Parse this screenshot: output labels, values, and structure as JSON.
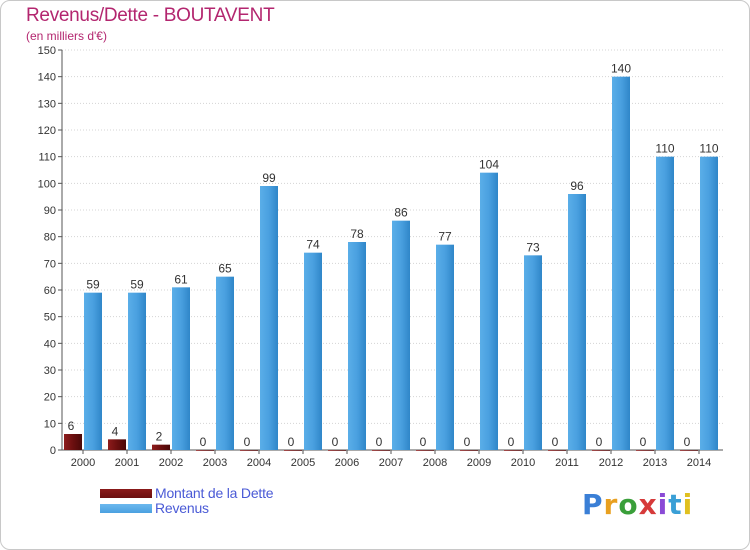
{
  "title": "Revenus/Dette - BOUTAVENT",
  "subtitle": "(en milliers d'€)",
  "colors": {
    "dette": "#6b0f0f",
    "revenus": "#4aa0e0",
    "title": "#b3266f",
    "legend_text": "#4a5ad6"
  },
  "legend": {
    "dette_label": "Montant de la Dette",
    "revenus_label": "Revenus"
  },
  "logo": {
    "text": "Proxiti"
  },
  "chart_data": {
    "type": "bar",
    "title": "Revenus/Dette - BOUTAVENT",
    "ylabel": "(en milliers d'€)",
    "xlabel": "",
    "categories": [
      "2000",
      "2001",
      "2002",
      "2003",
      "2004",
      "2005",
      "2006",
      "2007",
      "2008",
      "2009",
      "2010",
      "2011",
      "2012",
      "2013",
      "2014"
    ],
    "series": [
      {
        "name": "Montant de la Dette",
        "values": [
          6,
          4,
          2,
          0,
          0,
          0,
          0,
          0,
          0,
          0,
          0,
          0,
          0,
          0,
          0
        ]
      },
      {
        "name": "Revenus",
        "values": [
          59,
          59,
          61,
          65,
          99,
          74,
          78,
          86,
          77,
          104,
          73,
          96,
          140,
          110,
          110
        ]
      }
    ],
    "ylim": [
      0,
      150
    ],
    "yticks": [
      0,
      10,
      20,
      30,
      40,
      50,
      60,
      70,
      80,
      90,
      100,
      110,
      120,
      130,
      140,
      150
    ],
    "grid": true,
    "legend_position": "bottom-left"
  }
}
